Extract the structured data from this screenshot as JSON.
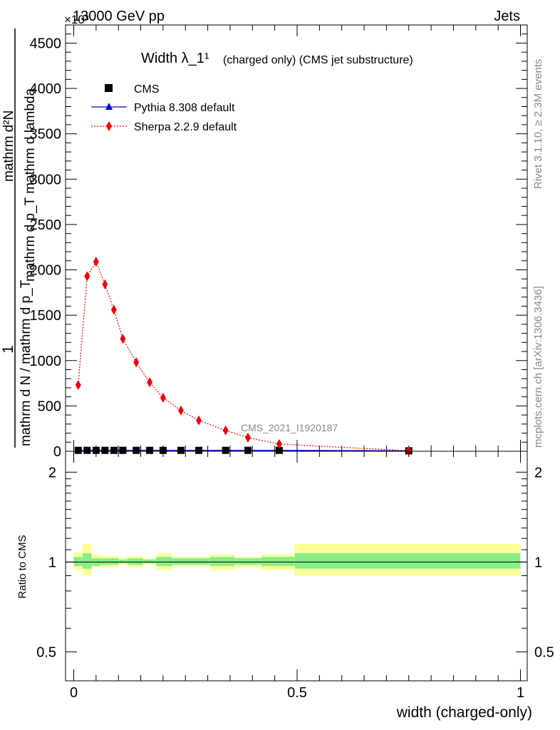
{
  "header": {
    "left": "13000 GeV pp",
    "right": "Jets",
    "exponent": "×10³"
  },
  "side_labels": {
    "rivet": "Rivet 3.1.10, ≥ 2.3M events",
    "mcplots": "mcplots.cern.ch [arXiv:1306.3436]"
  },
  "watermark": "CMS_2021_I1920187",
  "colors": {
    "data": "#000000",
    "pythia": "#0000cc",
    "sherpa": "#ee0000",
    "band_outer": "#ffff99",
    "band_inner": "#88ee88"
  },
  "chart_data": [
    {
      "type": "line",
      "panel": "main",
      "title": "Width λ_1¹",
      "subtitle": "(charged only) (CMS jet substructure)",
      "ylabel_numerator": "1",
      "ylabel_denominator_1": "mathrm d N / mathrm d p_T",
      "ylabel_denominator_2": "mathrm d N / mathrm d p_T mathrm d lambda",
      "ylabel_main": "mathrm d²N",
      "ylabel_sub": "mathrm d p_T mathrm d lambda",
      "xlim": [
        0,
        1
      ],
      "ylim": [
        0,
        4.7
      ],
      "yticks": [
        0,
        0.5,
        1,
        1.5,
        2,
        2.5,
        3,
        3.5,
        4,
        4.5
      ],
      "ytick_labels": [
        "0",
        "500",
        "1000",
        "1500",
        "2000",
        "2500",
        "3000",
        "3500",
        "4000",
        "4500"
      ],
      "legend_position": "top-left",
      "legend": [
        "CMS",
        "Pythia 8.308 default",
        "Sherpa 2.2.9 default"
      ],
      "series": [
        {
          "name": "CMS",
          "x": [
            0.01,
            0.03,
            0.05,
            0.07,
            0.09,
            0.11,
            0.14,
            0.17,
            0.2,
            0.24,
            0.28,
            0.34,
            0.39,
            0.46,
            0.75
          ],
          "y": [
            0.01,
            0.01,
            0.01,
            0.01,
            0.01,
            0.01,
            0.01,
            0.01,
            0.01,
            0.01,
            0.01,
            0.01,
            0.01,
            0.01,
            0.005
          ]
        },
        {
          "name": "Pythia 8.308 default",
          "x": [
            0.01,
            0.03,
            0.05,
            0.07,
            0.09,
            0.11,
            0.14,
            0.17,
            0.2,
            0.24,
            0.28,
            0.34,
            0.39,
            0.46,
            0.75
          ],
          "y": [
            0.01,
            0.01,
            0.01,
            0.01,
            0.01,
            0.01,
            0.01,
            0.01,
            0.01,
            0.01,
            0.01,
            0.01,
            0.01,
            0.01,
            0.005
          ]
        },
        {
          "name": "Sherpa 2.2.9 default",
          "x": [
            0.01,
            0.03,
            0.05,
            0.07,
            0.09,
            0.11,
            0.14,
            0.17,
            0.2,
            0.24,
            0.28,
            0.34,
            0.39,
            0.46,
            0.75
          ],
          "y": [
            0.73,
            1.93,
            2.09,
            1.84,
            1.56,
            1.24,
            0.98,
            0.76,
            0.59,
            0.45,
            0.34,
            0.23,
            0.15,
            0.08,
            0.005
          ]
        }
      ]
    },
    {
      "type": "area",
      "panel": "ratio",
      "ylabel": "Ratio to CMS",
      "xlabel": "width (charged-only)",
      "xlim": [
        0,
        1
      ],
      "ylim": [
        0.4,
        2.35
      ],
      "log_y": true,
      "xticks": [
        0,
        0.5,
        1
      ],
      "xtick_labels": [
        "0",
        "0.5",
        "1"
      ],
      "yticks": [
        0.5,
        1,
        2
      ],
      "ytick_labels": [
        "0.5",
        "1",
        "2"
      ],
      "bins": [
        {
          "x0": 0.0,
          "x1": 0.02,
          "inner": [
            0.97,
            1.04
          ],
          "outer": [
            0.94,
            1.08
          ]
        },
        {
          "x0": 0.02,
          "x1": 0.04,
          "inner": [
            0.95,
            1.07
          ],
          "outer": [
            0.9,
            1.15
          ]
        },
        {
          "x0": 0.04,
          "x1": 0.06,
          "inner": [
            0.97,
            1.03
          ],
          "outer": [
            0.96,
            1.06
          ]
        },
        {
          "x0": 0.06,
          "x1": 0.08,
          "inner": [
            0.98,
            1.03
          ],
          "outer": [
            0.96,
            1.05
          ]
        },
        {
          "x0": 0.08,
          "x1": 0.1,
          "inner": [
            0.98,
            1.03
          ],
          "outer": [
            0.96,
            1.05
          ]
        },
        {
          "x0": 0.1,
          "x1": 0.12,
          "inner": [
            0.99,
            1.02
          ],
          "outer": [
            0.98,
            1.03
          ]
        },
        {
          "x0": 0.12,
          "x1": 0.155,
          "inner": [
            0.98,
            1.03
          ],
          "outer": [
            0.96,
            1.05
          ]
        },
        {
          "x0": 0.155,
          "x1": 0.185,
          "inner": [
            0.99,
            1.02
          ],
          "outer": [
            0.98,
            1.03
          ]
        },
        {
          "x0": 0.185,
          "x1": 0.22,
          "inner": [
            0.97,
            1.04
          ],
          "outer": [
            0.94,
            1.07
          ]
        },
        {
          "x0": 0.22,
          "x1": 0.26,
          "inner": [
            0.98,
            1.03
          ],
          "outer": [
            0.97,
            1.04
          ]
        },
        {
          "x0": 0.26,
          "x1": 0.305,
          "inner": [
            0.98,
            1.03
          ],
          "outer": [
            0.97,
            1.04
          ]
        },
        {
          "x0": 0.305,
          "x1": 0.36,
          "inner": [
            0.97,
            1.04
          ],
          "outer": [
            0.94,
            1.06
          ]
        },
        {
          "x0": 0.36,
          "x1": 0.42,
          "inner": [
            0.98,
            1.03
          ],
          "outer": [
            0.96,
            1.04
          ]
        },
        {
          "x0": 0.42,
          "x1": 0.495,
          "inner": [
            0.97,
            1.04
          ],
          "outer": [
            0.94,
            1.06
          ]
        },
        {
          "x0": 0.495,
          "x1": 1.0,
          "inner": [
            0.95,
            1.07
          ],
          "outer": [
            0.9,
            1.15
          ]
        }
      ]
    }
  ]
}
